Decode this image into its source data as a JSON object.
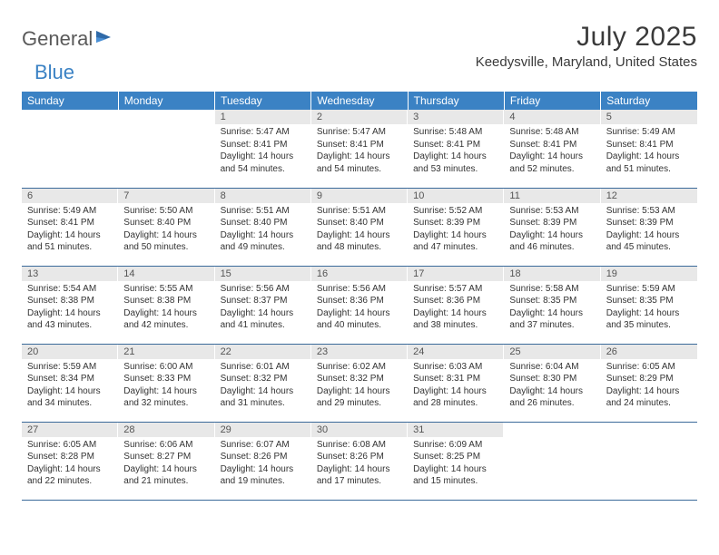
{
  "brand": {
    "part1": "General",
    "part2": "Blue"
  },
  "title": "July 2025",
  "location": "Keedysville, Maryland, United States",
  "header_bg": "#3b82c4",
  "daynum_bg": "#e8e8e8",
  "grid_border": "#3b6a9a",
  "day_headers": [
    "Sunday",
    "Monday",
    "Tuesday",
    "Wednesday",
    "Thursday",
    "Friday",
    "Saturday"
  ],
  "weeks": [
    [
      null,
      null,
      {
        "n": "1",
        "sunrise": "5:47 AM",
        "sunset": "8:41 PM",
        "daylight": "14 hours and 54 minutes."
      },
      {
        "n": "2",
        "sunrise": "5:47 AM",
        "sunset": "8:41 PM",
        "daylight": "14 hours and 54 minutes."
      },
      {
        "n": "3",
        "sunrise": "5:48 AM",
        "sunset": "8:41 PM",
        "daylight": "14 hours and 53 minutes."
      },
      {
        "n": "4",
        "sunrise": "5:48 AM",
        "sunset": "8:41 PM",
        "daylight": "14 hours and 52 minutes."
      },
      {
        "n": "5",
        "sunrise": "5:49 AM",
        "sunset": "8:41 PM",
        "daylight": "14 hours and 51 minutes."
      }
    ],
    [
      {
        "n": "6",
        "sunrise": "5:49 AM",
        "sunset": "8:41 PM",
        "daylight": "14 hours and 51 minutes."
      },
      {
        "n": "7",
        "sunrise": "5:50 AM",
        "sunset": "8:40 PM",
        "daylight": "14 hours and 50 minutes."
      },
      {
        "n": "8",
        "sunrise": "5:51 AM",
        "sunset": "8:40 PM",
        "daylight": "14 hours and 49 minutes."
      },
      {
        "n": "9",
        "sunrise": "5:51 AM",
        "sunset": "8:40 PM",
        "daylight": "14 hours and 48 minutes."
      },
      {
        "n": "10",
        "sunrise": "5:52 AM",
        "sunset": "8:39 PM",
        "daylight": "14 hours and 47 minutes."
      },
      {
        "n": "11",
        "sunrise": "5:53 AM",
        "sunset": "8:39 PM",
        "daylight": "14 hours and 46 minutes."
      },
      {
        "n": "12",
        "sunrise": "5:53 AM",
        "sunset": "8:39 PM",
        "daylight": "14 hours and 45 minutes."
      }
    ],
    [
      {
        "n": "13",
        "sunrise": "5:54 AM",
        "sunset": "8:38 PM",
        "daylight": "14 hours and 43 minutes."
      },
      {
        "n": "14",
        "sunrise": "5:55 AM",
        "sunset": "8:38 PM",
        "daylight": "14 hours and 42 minutes."
      },
      {
        "n": "15",
        "sunrise": "5:56 AM",
        "sunset": "8:37 PM",
        "daylight": "14 hours and 41 minutes."
      },
      {
        "n": "16",
        "sunrise": "5:56 AM",
        "sunset": "8:36 PM",
        "daylight": "14 hours and 40 minutes."
      },
      {
        "n": "17",
        "sunrise": "5:57 AM",
        "sunset": "8:36 PM",
        "daylight": "14 hours and 38 minutes."
      },
      {
        "n": "18",
        "sunrise": "5:58 AM",
        "sunset": "8:35 PM",
        "daylight": "14 hours and 37 minutes."
      },
      {
        "n": "19",
        "sunrise": "5:59 AM",
        "sunset": "8:35 PM",
        "daylight": "14 hours and 35 minutes."
      }
    ],
    [
      {
        "n": "20",
        "sunrise": "5:59 AM",
        "sunset": "8:34 PM",
        "daylight": "14 hours and 34 minutes."
      },
      {
        "n": "21",
        "sunrise": "6:00 AM",
        "sunset": "8:33 PM",
        "daylight": "14 hours and 32 minutes."
      },
      {
        "n": "22",
        "sunrise": "6:01 AM",
        "sunset": "8:32 PM",
        "daylight": "14 hours and 31 minutes."
      },
      {
        "n": "23",
        "sunrise": "6:02 AM",
        "sunset": "8:32 PM",
        "daylight": "14 hours and 29 minutes."
      },
      {
        "n": "24",
        "sunrise": "6:03 AM",
        "sunset": "8:31 PM",
        "daylight": "14 hours and 28 minutes."
      },
      {
        "n": "25",
        "sunrise": "6:04 AM",
        "sunset": "8:30 PM",
        "daylight": "14 hours and 26 minutes."
      },
      {
        "n": "26",
        "sunrise": "6:05 AM",
        "sunset": "8:29 PM",
        "daylight": "14 hours and 24 minutes."
      }
    ],
    [
      {
        "n": "27",
        "sunrise": "6:05 AM",
        "sunset": "8:28 PM",
        "daylight": "14 hours and 22 minutes."
      },
      {
        "n": "28",
        "sunrise": "6:06 AM",
        "sunset": "8:27 PM",
        "daylight": "14 hours and 21 minutes."
      },
      {
        "n": "29",
        "sunrise": "6:07 AM",
        "sunset": "8:26 PM",
        "daylight": "14 hours and 19 minutes."
      },
      {
        "n": "30",
        "sunrise": "6:08 AM",
        "sunset": "8:26 PM",
        "daylight": "14 hours and 17 minutes."
      },
      {
        "n": "31",
        "sunrise": "6:09 AM",
        "sunset": "8:25 PM",
        "daylight": "14 hours and 15 minutes."
      },
      null,
      null
    ]
  ],
  "labels": {
    "sunrise": "Sunrise:",
    "sunset": "Sunset:",
    "daylight": "Daylight:"
  }
}
